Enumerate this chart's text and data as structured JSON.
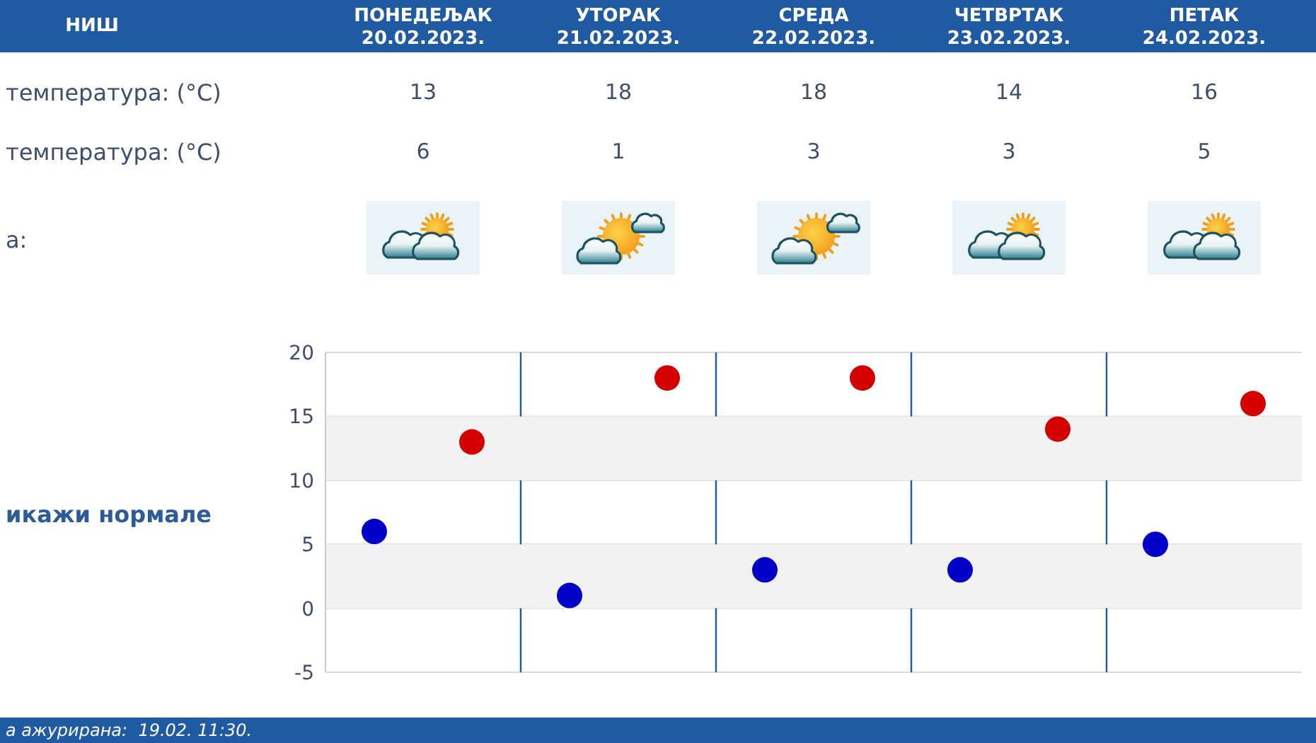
{
  "chart_data": {
    "type": "scatter",
    "title": "НИШ",
    "categories": [
      null,
      null,
      null,
      null,
      null
    ],
    "series": [
      {
        "color": "#d40000",
        "values": [
          13,
          18,
          18,
          14,
          16
        ]
      },
      {
        "color": "#0000c8",
        "values": [
          6,
          1,
          3,
          3,
          5
        ]
      }
    ],
    "ylim": [
      -5,
      20
    ],
    "yticks": [
      -5,
      0,
      5,
      10,
      15,
      20
    ],
    "grid": true,
    "marker": "circle",
    "data_labels": true,
    "bands": [
      {
        "axis": "y",
        "from": 10,
        "to": 15,
        "color": "#f2f2f2"
      },
      {
        "axis": "y",
        "from": 0,
        "to": 5,
        "color": "#f2f2f2"
      }
    ],
    "annotations": [
      "ПОНЕДЕЉАК 20.02.2023.",
      "УТОРАК 21.02.2023.",
      "СРЕДА 22.02.2023.",
      "ЧЕТВРТАК 23.02.2023.",
      "ПЕТАК 24.02.2023.",
      "температура: (°C)",
      "температура: (°C)",
      "а:",
      "икажи нормале",
      "а ажурирана:  19.02. 11:30."
    ]
  }
}
